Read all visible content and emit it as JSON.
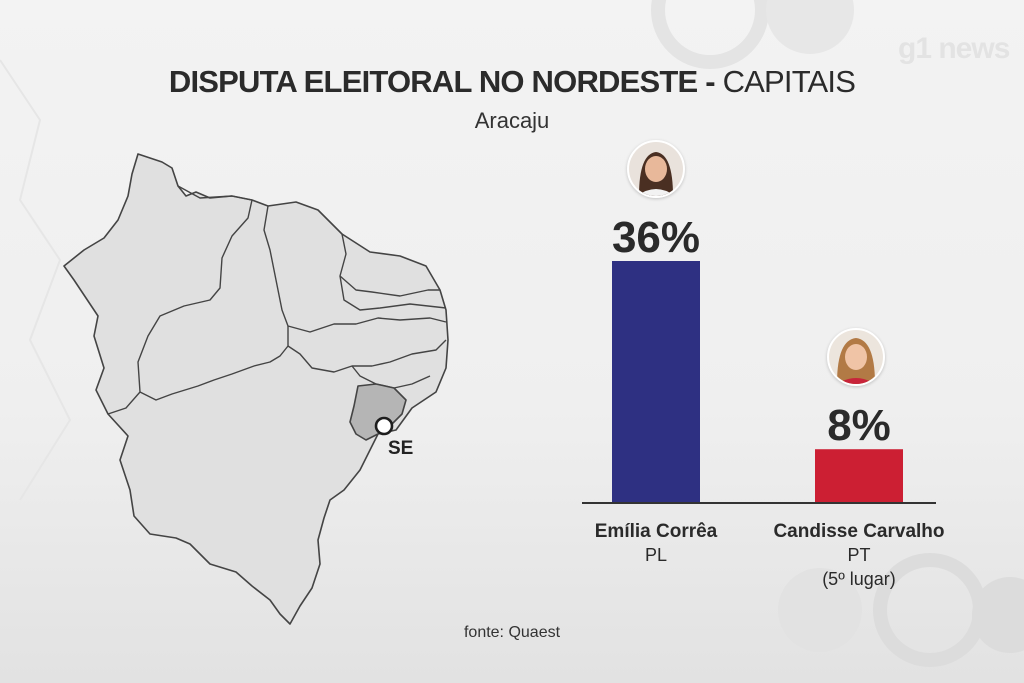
{
  "header": {
    "title_bold": "DISPUTA ELEITORAL NO NORDESTE -",
    "title_thin": "CAPITAIS",
    "subtitle": "Aracaju"
  },
  "logo_text": "g1 news",
  "map": {
    "highlight_state_label": "SE",
    "highlight_color": "#b5b5b5"
  },
  "chart_data": {
    "type": "bar",
    "title": "DISPUTA ELEITORAL NO NORDESTE - CAPITAIS",
    "subtitle": "Aracaju",
    "categories": [
      "Emília Corrêa",
      "Candisse Carvalho"
    ],
    "values": [
      36,
      8
    ],
    "value_labels": [
      "36%",
      "8%"
    ],
    "parties": [
      "PL",
      "PT"
    ],
    "notes": [
      "",
      "(5º lugar)"
    ],
    "colors": [
      "#2e3082",
      "#cc1f33"
    ],
    "unit": "%",
    "ylim": [
      0,
      40
    ],
    "grid": false
  },
  "source": "fonte: Quaest"
}
